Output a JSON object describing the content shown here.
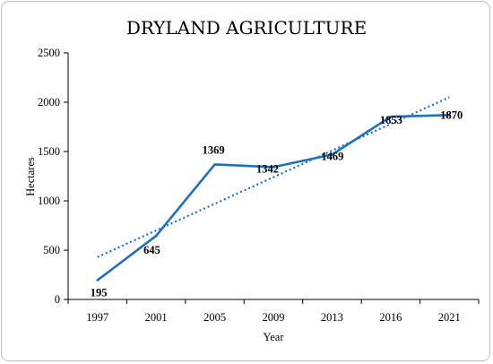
{
  "chart_data": {
    "type": "line",
    "title": "DRYLAND AGRICULTURE",
    "xlabel": "Year",
    "ylabel": "Hectares",
    "categories": [
      "1997",
      "2001",
      "2005",
      "2009",
      "2013",
      "2016",
      "2021"
    ],
    "series": [
      {
        "values": [
          195,
          645,
          1369,
          1342,
          1469,
          1853,
          1870
        ],
        "color": "#1f6fbf",
        "data_labels": [
          "195",
          "645",
          "1369",
          "1342",
          "1469",
          "1853",
          "1870"
        ]
      }
    ],
    "trendline": {
      "type": "linear",
      "style": "dotted",
      "color": "#1f6fbf",
      "start": 430,
      "end": 2050
    },
    "ylim": [
      0,
      2500
    ],
    "yticks": [
      "0",
      "500",
      "1000",
      "1500",
      "2000",
      "2500"
    ],
    "grid": false,
    "legend": "none"
  }
}
